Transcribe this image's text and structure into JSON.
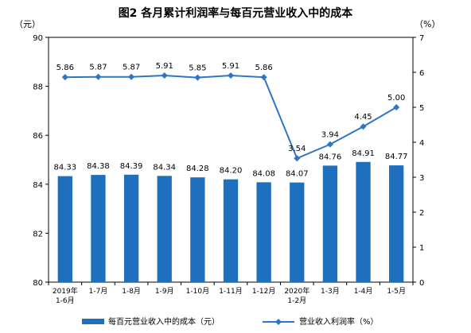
{
  "chart_data": {
    "type": "bar",
    "title": "图2  各月累计利润率与每百元营业收入中的成本",
    "left_unit": "（元）",
    "right_unit": "（%）",
    "categories": [
      [
        "2019年",
        "1-6月"
      ],
      [
        "1-7月"
      ],
      [
        "1-8月"
      ],
      [
        "1-9月"
      ],
      [
        "1-10月"
      ],
      [
        "1-11月"
      ],
      [
        "1-12月"
      ],
      [
        "2020年",
        "1-2月"
      ],
      [
        "1-3月"
      ],
      [
        "1-4月"
      ],
      [
        "1-5月"
      ]
    ],
    "ylim_left": [
      80,
      90
    ],
    "yticks_left": [
      80,
      82,
      84,
      86,
      88,
      90
    ],
    "ylim_right": [
      0,
      7
    ],
    "yticks_right": [
      0,
      1,
      2,
      3,
      4,
      5,
      6,
      7
    ],
    "series": [
      {
        "name": "每百元营业收入中的成本（元）",
        "type": "bar",
        "axis": "left",
        "color": "#1f6fbf",
        "values": [
          84.33,
          84.38,
          84.39,
          84.34,
          84.28,
          84.2,
          84.08,
          84.07,
          84.76,
          84.91,
          84.77
        ],
        "labels": [
          "84.33",
          "84.38",
          "84.39",
          "84.34",
          "84.28",
          "84.20",
          "84.08",
          "84.07",
          "84.76",
          "84.91",
          "84.77"
        ]
      },
      {
        "name": "营业收入利润率（%）",
        "type": "line",
        "axis": "right",
        "color": "#2e75c8",
        "values": [
          5.86,
          5.87,
          5.87,
          5.91,
          5.85,
          5.91,
          5.86,
          3.54,
          3.94,
          4.45,
          5.0
        ],
        "labels": [
          "5.86",
          "5.87",
          "5.87",
          "5.91",
          "5.85",
          "5.91",
          "5.86",
          "3.54",
          "3.94",
          "4.45",
          "5.00"
        ]
      }
    ],
    "grid": false,
    "legend_position": "bottom"
  }
}
